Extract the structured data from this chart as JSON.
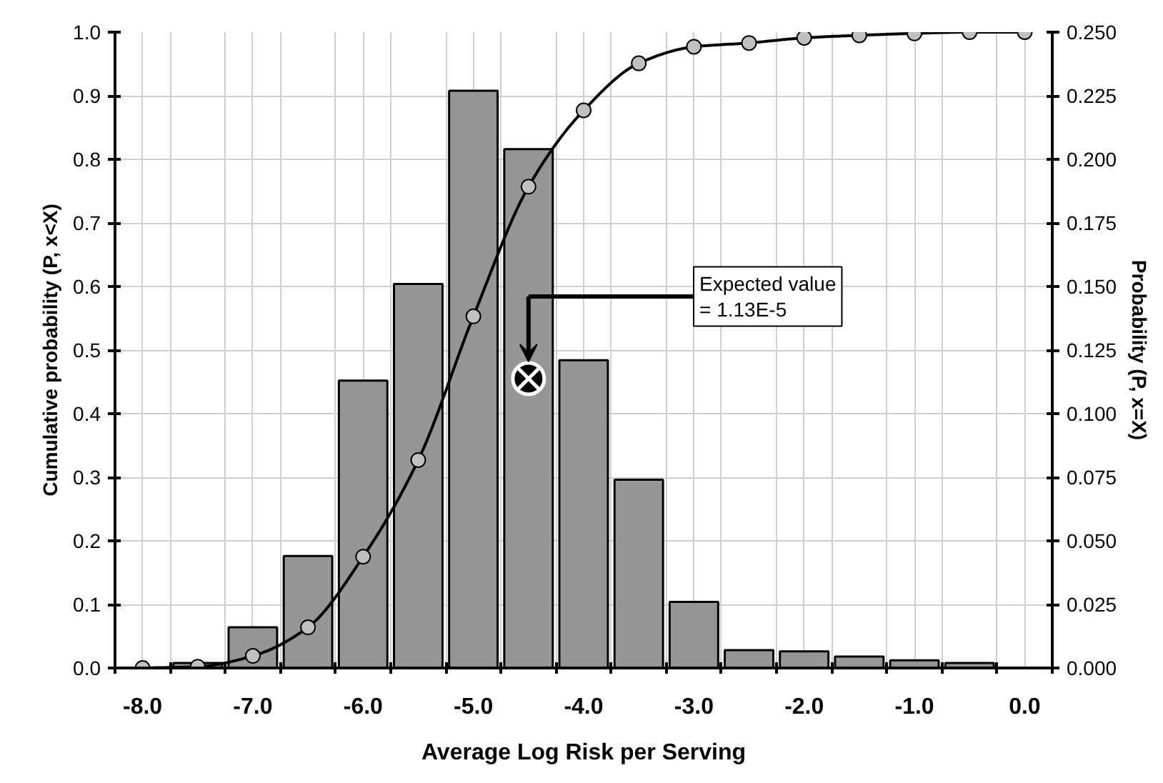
{
  "chart_data": {
    "type": "bar",
    "xlabel": "Average Log Risk per Serving",
    "ylabel": "Cumulative probability (P, x<X)",
    "y2label": "Probability (P, x=X)",
    "x": [
      -8.0,
      -7.5,
      -7.0,
      -6.5,
      -6.0,
      -5.5,
      -5.0,
      -4.5,
      -4.0,
      -3.5,
      -3.0,
      -2.5,
      -2.0,
      -1.5,
      -1.0,
      -0.5,
      0.0
    ],
    "series": [
      {
        "axis": "y2",
        "color": "#969696",
        "values": [
          null,
          0.002,
          0.016,
          0.044,
          0.113,
          0.151,
          0.227,
          0.204,
          0.121,
          0.074,
          0.026,
          0.007,
          0.0065,
          0.0045,
          0.003,
          0.002,
          null
        ]
      },
      {
        "type": "line",
        "color": "#000000",
        "marker": "circle",
        "values": [
          0.0,
          0.002,
          0.019,
          0.064,
          0.175,
          0.327,
          0.553,
          0.757,
          0.877,
          0.951,
          0.977,
          0.983,
          0.991,
          0.995,
          0.998,
          1.0,
          1.0
        ]
      },
      {
        "type": "scatter",
        "color": "#000000",
        "x": [
          -4.5
        ],
        "values": [
          0.455
        ]
      }
    ],
    "xlim": [
      -8.25,
      0.25
    ],
    "xticks": [
      {
        "value": -8.25,
        "label": null
      },
      {
        "value": -8.0,
        "label": "-8.0"
      },
      {
        "value": -7.75,
        "label": null
      },
      {
        "value": -7.25,
        "label": null
      },
      {
        "value": -7.0,
        "label": "-7.0"
      },
      {
        "value": -6.75,
        "label": null
      },
      {
        "value": -6.25,
        "label": null
      },
      {
        "value": -6.0,
        "label": "-6.0"
      },
      {
        "value": -5.75,
        "label": null
      },
      {
        "value": -5.25,
        "label": null
      },
      {
        "value": -5.0,
        "label": "-5.0"
      },
      {
        "value": -4.75,
        "label": null
      },
      {
        "value": -4.25,
        "label": null
      },
      {
        "value": -4.0,
        "label": "-4.0"
      },
      {
        "value": -3.75,
        "label": null
      },
      {
        "value": -3.25,
        "label": null
      },
      {
        "value": -3.0,
        "label": "-3.0"
      },
      {
        "value": -2.75,
        "label": null
      },
      {
        "value": -2.25,
        "label": null
      },
      {
        "value": -2.0,
        "label": "-2.0"
      },
      {
        "value": -1.75,
        "label": null
      },
      {
        "value": -1.25,
        "label": null
      },
      {
        "value": -1.0,
        "label": "-1.0"
      },
      {
        "value": -0.75,
        "label": null
      },
      {
        "value": -0.25,
        "label": null
      },
      {
        "value": 0.0,
        "label": "0.0"
      },
      {
        "value": 0.25,
        "label": null
      }
    ],
    "ylim": [
      0,
      1
    ],
    "yticks": [
      {
        "value": 0,
        "label": "0.0"
      },
      {
        "value": 0.1,
        "label": "0.1"
      },
      {
        "value": 0.2,
        "label": "0.2"
      },
      {
        "value": 0.3,
        "label": "0.3"
      },
      {
        "value": 0.4,
        "label": "0.4"
      },
      {
        "value": 0.5,
        "label": "0.5"
      },
      {
        "value": 0.6,
        "label": "0.6"
      },
      {
        "value": 0.7,
        "label": "0.7"
      },
      {
        "value": 0.8,
        "label": "0.8"
      },
      {
        "value": 0.9,
        "label": "0.9"
      },
      {
        "value": 1,
        "label": "1.0"
      }
    ],
    "y2lim": [
      0,
      0.25
    ],
    "y2ticks": [
      {
        "value": 0,
        "label": "0.000"
      },
      {
        "value": 0.025,
        "label": "0.025"
      },
      {
        "value": 0.05,
        "label": "0.050"
      },
      {
        "value": 0.075,
        "label": "0.075"
      },
      {
        "value": 0.1,
        "label": "0.100"
      },
      {
        "value": 0.125,
        "label": "0.125"
      },
      {
        "value": 0.15,
        "label": "0.150"
      },
      {
        "value": 0.175,
        "label": "0.175"
      },
      {
        "value": 0.2,
        "label": "0.200"
      },
      {
        "value": 0.225,
        "label": "0.225"
      },
      {
        "value": 0.25,
        "label": "0.250"
      }
    ],
    "grid": true,
    "annotations": [
      "Expected value\n= 1.13E-5"
    ]
  }
}
